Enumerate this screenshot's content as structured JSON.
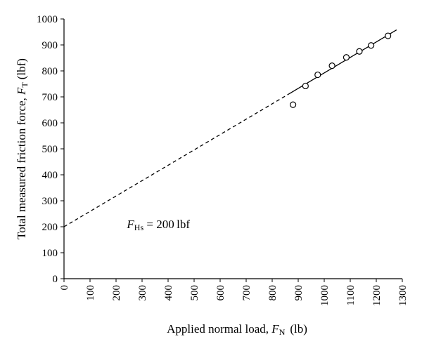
{
  "chart_data": {
    "type": "scatter",
    "xlabel": {
      "prefix": "Applied normal load, ",
      "symbol": "F",
      "subscript": "N",
      "unit": "(lb)"
    },
    "ylabel": {
      "prefix": "Total measured friction force, ",
      "symbol": "F",
      "subscript": "T",
      "unit": "(lbf)"
    },
    "xlim": [
      0,
      1300
    ],
    "ylim": [
      0,
      1000
    ],
    "x_ticks": [
      "0",
      "100",
      "200",
      "300",
      "400",
      "500",
      "600",
      "700",
      "800",
      "900",
      "1000",
      "1100",
      "1200",
      "1300"
    ],
    "y_ticks": [
      "0",
      "100",
      "200",
      "300",
      "400",
      "500",
      "600",
      "700",
      "800",
      "900",
      "1000"
    ],
    "grid": false,
    "series": [
      {
        "style": "open-circle-markers",
        "x": [
          880,
          928,
          975,
          1030,
          1085,
          1135,
          1180,
          1245
        ],
        "y": [
          670,
          742,
          785,
          820,
          852,
          875,
          898,
          935
        ]
      }
    ],
    "fit_line": {
      "style": "solid",
      "x": [
        862,
        1278
      ],
      "y": [
        710,
        958
      ]
    },
    "extrapolation": {
      "style": "dashed",
      "x": [
        0,
        862
      ],
      "y": [
        200,
        710
      ]
    },
    "annotation": {
      "symbol": "F",
      "subscript": "Hs",
      "rest": " = 200 lbf",
      "x": 120,
      "y": 200
    },
    "colors": {
      "ink": "#000000",
      "background": "#ffffff"
    }
  }
}
